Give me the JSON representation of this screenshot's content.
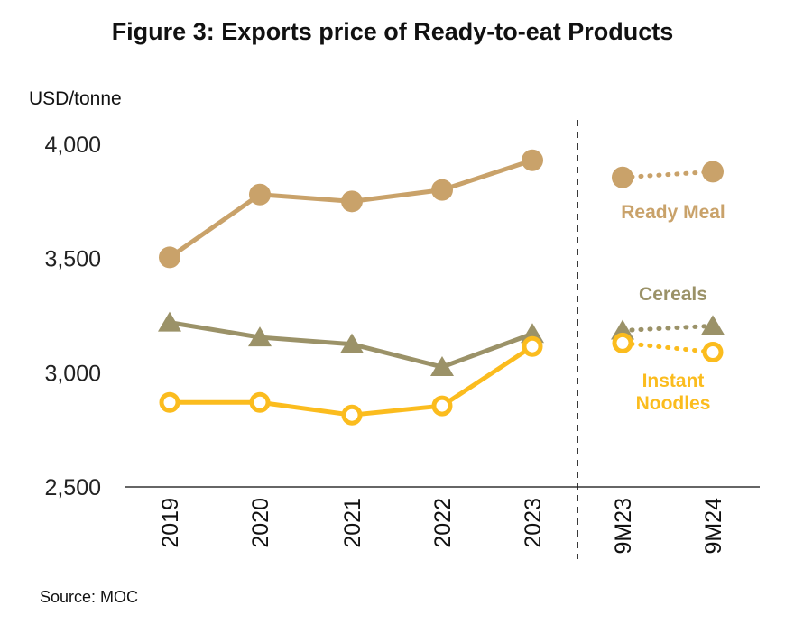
{
  "title": "Figure 3: Exports price of Ready-to-eat Products",
  "unit_label": "USD/tonne",
  "source": "Source: MOC",
  "chart_data": {
    "type": "line",
    "title": "Figure 3: Exports price of Ready-to-eat Products",
    "ylabel": "USD/tonne",
    "ylim": [
      2500,
      4000
    ],
    "yticks": [
      "2,500",
      "3,000",
      "3,500",
      "4,000"
    ],
    "annual": {
      "categories": [
        "2019",
        "2020",
        "2021",
        "2022",
        "2023"
      ],
      "series": [
        {
          "name": "Ready Meal",
          "color": "#c9a26a",
          "marker": "circle",
          "values": [
            3505,
            3780,
            3750,
            3800,
            3930
          ]
        },
        {
          "name": "Cereals",
          "color": "#9b9268",
          "marker": "triangle",
          "values": [
            3220,
            3155,
            3125,
            3025,
            3170
          ]
        },
        {
          "name": "Instant Noodles",
          "color": "#fbbc1e",
          "marker": "open-circle",
          "values": [
            2870,
            2870,
            2815,
            2855,
            3115
          ]
        }
      ]
    },
    "period": {
      "categories": [
        "9M23",
        "9M24"
      ],
      "series": [
        {
          "name": "Ready Meal",
          "color": "#c9a26a",
          "marker": "circle",
          "values": [
            3855,
            3880
          ]
        },
        {
          "name": "Cereals",
          "color": "#9b9268",
          "marker": "triangle",
          "values": [
            3185,
            3205
          ]
        },
        {
          "name": "Instant Noodles",
          "color": "#fbbc1e",
          "marker": "open-circle",
          "values": [
            3130,
            3090
          ]
        }
      ]
    },
    "series_labels": [
      {
        "text": "Ready Meal",
        "color": "#c9a26a"
      },
      {
        "text": "Cereals",
        "color": "#9b9268"
      },
      {
        "text": "Instant",
        "color": "#fbbc1e"
      },
      {
        "text": "Noodles",
        "color": "#fbbc1e"
      }
    ],
    "grid": false
  }
}
